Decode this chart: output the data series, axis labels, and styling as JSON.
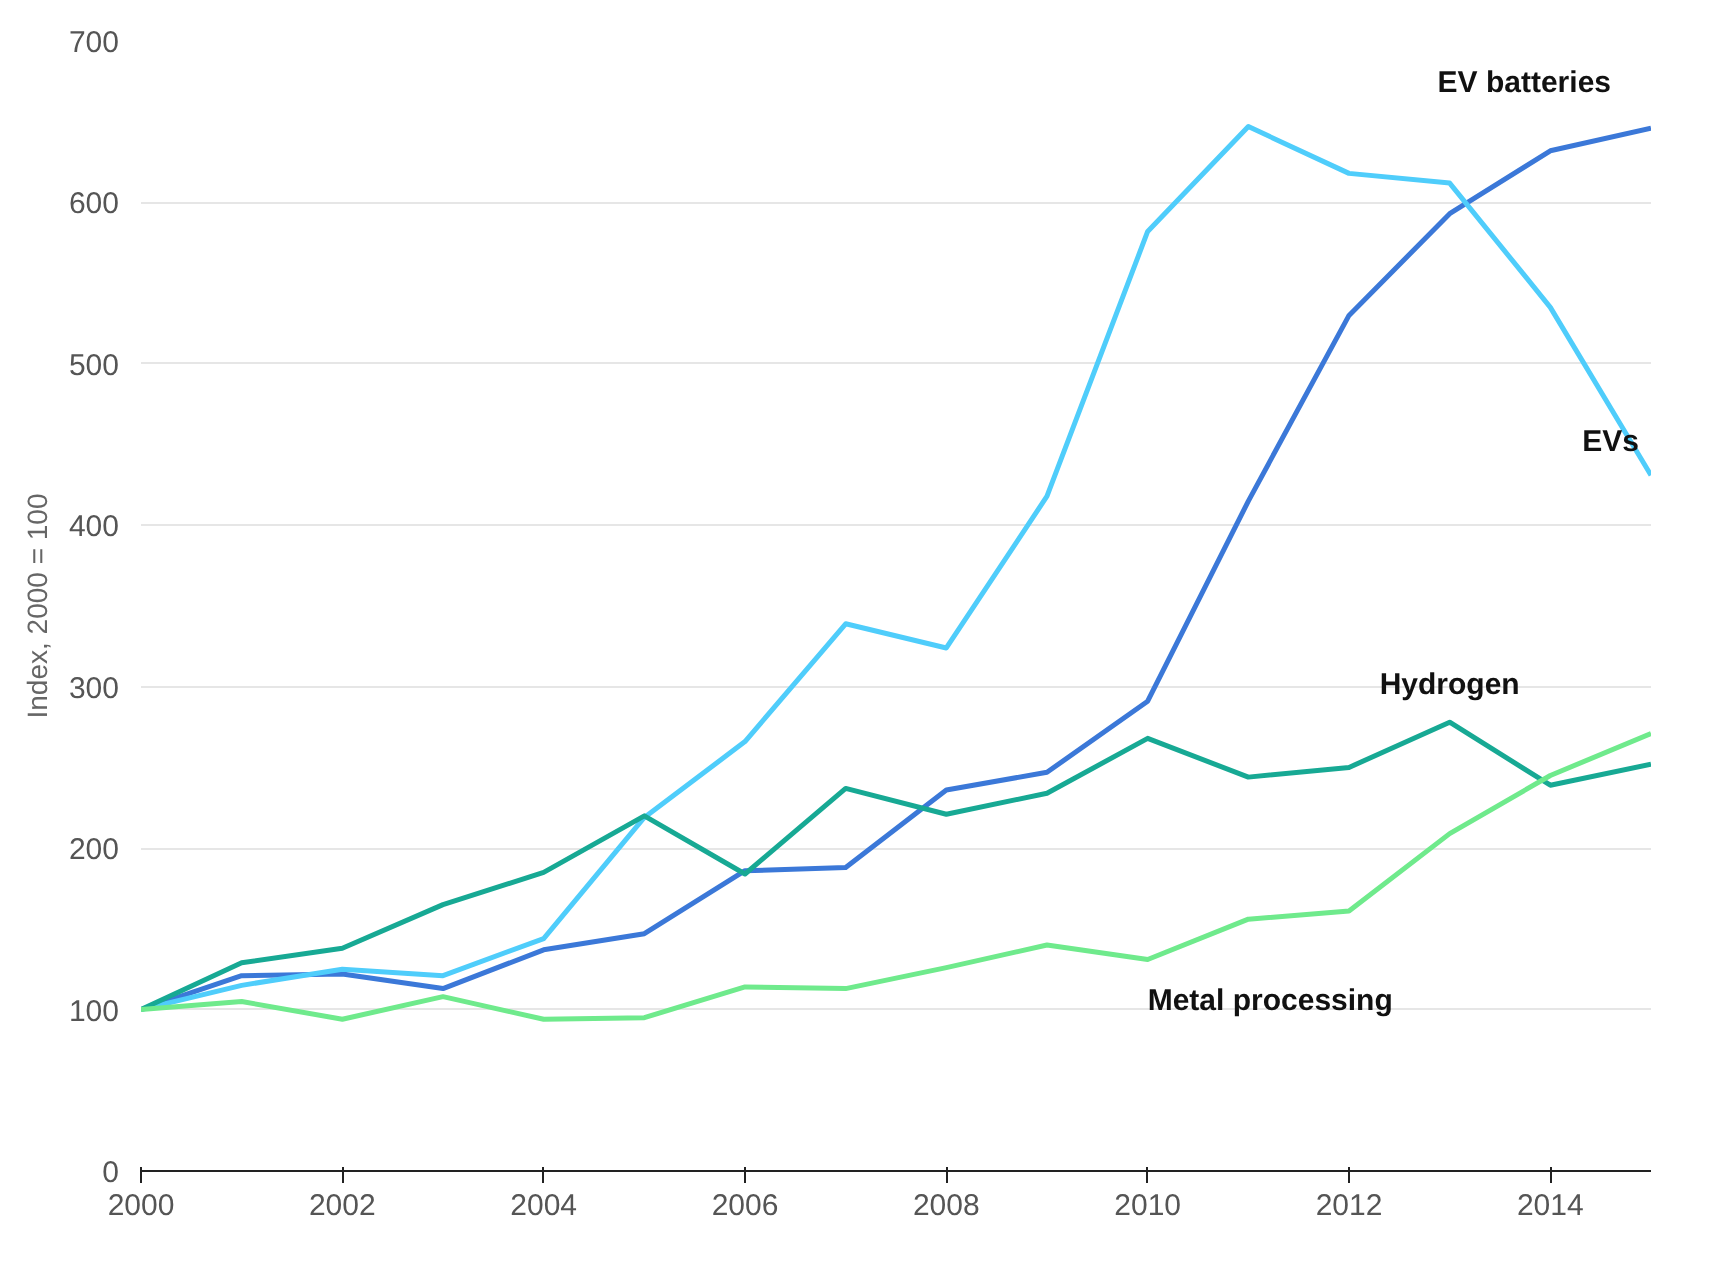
{
  "chart_data": {
    "type": "line",
    "ylabel": "Index, 2000 = 100",
    "x": [
      2000,
      2001,
      2002,
      2003,
      2004,
      2005,
      2006,
      2007,
      2008,
      2009,
      2010,
      2011,
      2012,
      2013,
      2014,
      2015
    ],
    "series": [
      {
        "name": "EV batteries",
        "color": "#3b78d8",
        "values": [
          100,
          121,
          122,
          113,
          137,
          147,
          186,
          188,
          236,
          247,
          291,
          415,
          530,
          593,
          632,
          646
        ]
      },
      {
        "name": "EVs",
        "color": "#4fcdfb",
        "values": [
          100,
          115,
          125,
          121,
          144,
          219,
          266,
          339,
          324,
          418,
          582,
          647,
          618,
          612,
          535,
          431
        ]
      },
      {
        "name": "Hydrogen",
        "color": "#17a994",
        "values": [
          100,
          129,
          138,
          165,
          185,
          220,
          184,
          237,
          221,
          234,
          268,
          244,
          250,
          278,
          239,
          252
        ]
      },
      {
        "name": "Metal processing",
        "color": "#6fea8c",
        "values": [
          100,
          105,
          94,
          108,
          94,
          95,
          114,
          113,
          126,
          140,
          131,
          156,
          161,
          209,
          245,
          271
        ]
      }
    ],
    "xlim": [
      2000,
      2015
    ],
    "xticks": [
      2000,
      2002,
      2004,
      2006,
      2008,
      2010,
      2012,
      2014
    ],
    "ylim": [
      0,
      700
    ],
    "yticks": [
      0,
      100,
      200,
      300,
      400,
      500,
      600,
      700
    ],
    "grid": "y",
    "legend": false,
    "marker": "none",
    "line_style": "solid"
  }
}
